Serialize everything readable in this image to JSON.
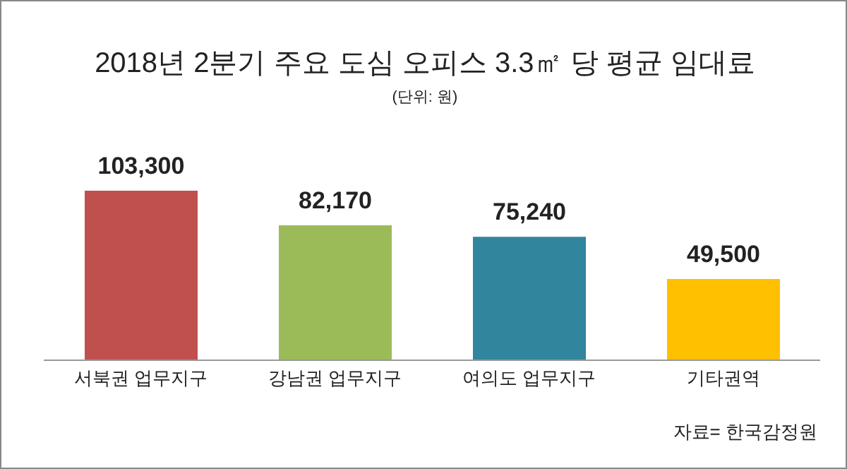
{
  "chart_data": {
    "type": "bar",
    "title": "2018년 2분기 주요 도심 오피스 3.3㎡ 당 평균 임대료",
    "subtitle": "(단위: 원)",
    "categories": [
      "서북권 업무지구",
      "강남권 업무지구",
      "여의도 업무지구",
      "기타권역"
    ],
    "values": [
      103300,
      82170,
      75240,
      49500
    ],
    "colors": [
      "#c0504d",
      "#9bbb59",
      "#31859c",
      "#ffc000"
    ],
    "value_labels": [
      "103,300",
      "82,170",
      "75,240",
      "49,500"
    ],
    "grid": false,
    "annotations": [
      "자료= 한국감정원"
    ]
  }
}
